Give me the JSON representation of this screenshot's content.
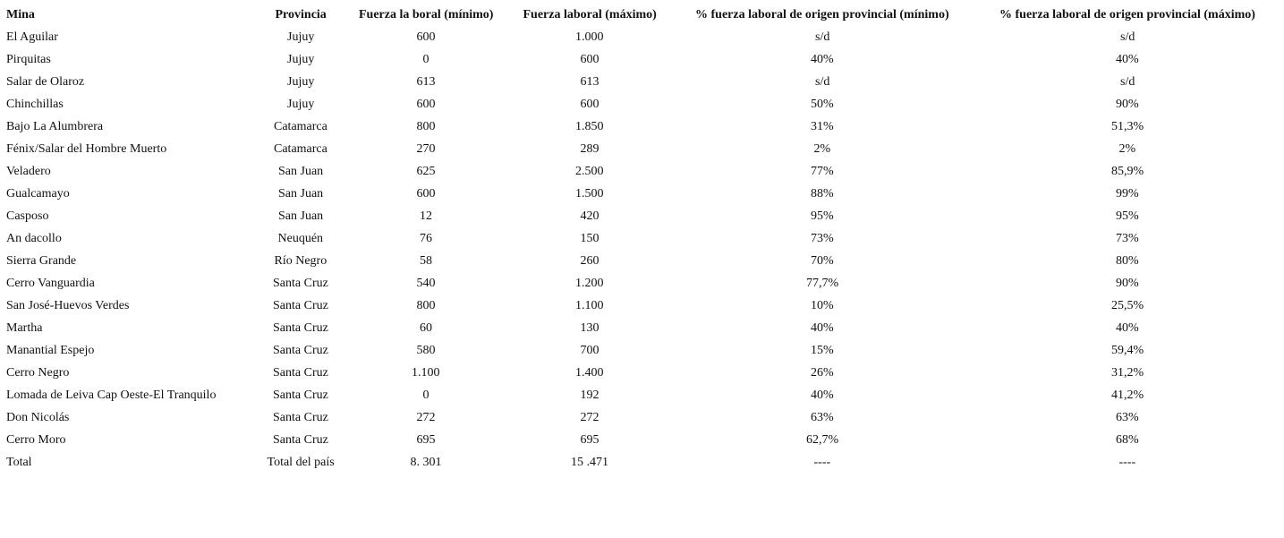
{
  "table": {
    "header": [
      "Mina",
      "Provincia",
      "Fuerza la boral (mínimo)",
      "Fuerza laboral (máximo)",
      "% fuerza laboral de origen provincial (mínimo)",
      "% fuerza laboral de origen provincial (máximo)"
    ],
    "rows": [
      [
        "El Aguilar",
        "Jujuy",
        "600",
        "1.000",
        "s/d",
        "s/d"
      ],
      [
        "Pirquitas",
        "Jujuy",
        "0",
        "600",
        "40%",
        "40%"
      ],
      [
        "Salar de Olaroz",
        "Jujuy",
        "613",
        "613",
        "s/d",
        "s/d"
      ],
      [
        "Chinchillas",
        "Jujuy",
        "600",
        "600",
        "50%",
        "90%"
      ],
      [
        "Bajo La Alumbrera",
        "Catamarca",
        "800",
        "1.850",
        "31%",
        "51,3%"
      ],
      [
        "Fénix/Salar del Hombre Muerto",
        "Catamarca",
        "270",
        "289",
        "2%",
        "2%"
      ],
      [
        "Veladero",
        "San Juan",
        "625",
        "2.500",
        "77%",
        "85,9%"
      ],
      [
        "Gualcamayo",
        "San Juan",
        "600",
        "1.500",
        "88%",
        "99%"
      ],
      [
        "Casposo",
        "San Juan",
        "12",
        "420",
        "95%",
        "95%"
      ],
      [
        "An dacollo",
        "Neuquén",
        "76",
        "150",
        "73%",
        "73%"
      ],
      [
        "Sierra Grande",
        "Río Negro",
        "58",
        "260",
        "70%",
        "80%"
      ],
      [
        "Cerro Vanguardia",
        "Santa Cruz",
        "540",
        "1.200",
        "77,7%",
        "90%"
      ],
      [
        "San José-Huevos Verdes",
        "Santa Cruz",
        "800",
        "1.100",
        "10%",
        "25,5%"
      ],
      [
        "Martha",
        "Santa Cruz",
        "60",
        "130",
        "40%",
        "40%"
      ],
      [
        "Manantial Espejo",
        "Santa Cruz",
        "580",
        "700",
        "15%",
        "59,4%"
      ],
      [
        "Cerro Negro",
        "Santa Cruz",
        "1.100",
        "1.400",
        "26%",
        "31,2%"
      ],
      [
        "Lomada de Leiva Cap Oeste-El Tranquilo",
        "Santa Cruz",
        "0",
        "192",
        "40%",
        "41,2%"
      ],
      [
        "Don Nicolás",
        "Santa Cruz",
        "272",
        "272",
        "63%",
        "63%"
      ],
      [
        "Cerro Moro",
        "Santa Cruz",
        "695",
        "695",
        "62,7%",
        "68%"
      ],
      [
        "Total",
        "Total del país",
        "8. 301",
        "15 .471",
        "----",
        "----"
      ]
    ]
  }
}
